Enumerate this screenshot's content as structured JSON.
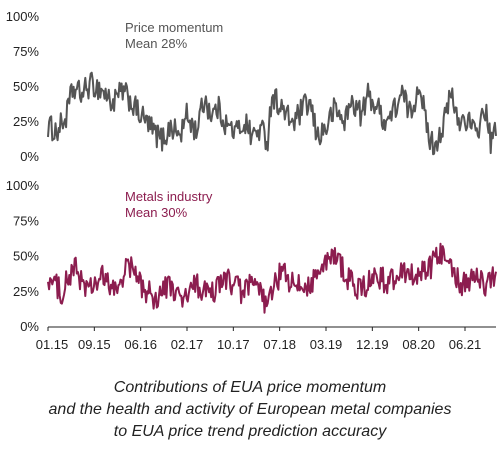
{
  "chart_data": [
    {
      "type": "line",
      "series": [
        {
          "name": "Price momentum",
          "color": "#555555"
        }
      ],
      "annotation": "Mean 28%",
      "mean": 28,
      "ylim": [
        0,
        100
      ],
      "yticks": [
        "0%",
        "25%",
        "50%",
        "75%",
        "100%"
      ],
      "approx_keypoints": [
        [
          0,
          22
        ],
        [
          0.02,
          18
        ],
        [
          0.04,
          28
        ],
        [
          0.055,
          48
        ],
        [
          0.075,
          45
        ],
        [
          0.095,
          52
        ],
        [
          0.12,
          48
        ],
        [
          0.145,
          38
        ],
        [
          0.165,
          47
        ],
        [
          0.18,
          42
        ],
        [
          0.2,
          32
        ],
        [
          0.22,
          25
        ],
        [
          0.235,
          18
        ],
        [
          0.255,
          12
        ],
        [
          0.275,
          22
        ],
        [
          0.295,
          15
        ],
        [
          0.31,
          30
        ],
        [
          0.33,
          18
        ],
        [
          0.35,
          42
        ],
        [
          0.365,
          30
        ],
        [
          0.38,
          35
        ],
        [
          0.4,
          22
        ],
        [
          0.42,
          18
        ],
        [
          0.44,
          25
        ],
        [
          0.455,
          15
        ],
        [
          0.475,
          20
        ],
        [
          0.49,
          12
        ],
        [
          0.5,
          45
        ],
        [
          0.515,
          38
        ],
        [
          0.535,
          28
        ],
        [
          0.55,
          25
        ],
        [
          0.57,
          35
        ],
        [
          0.585,
          38
        ],
        [
          0.6,
          15
        ],
        [
          0.62,
          20
        ],
        [
          0.64,
          35
        ],
        [
          0.66,
          25
        ],
        [
          0.68,
          40
        ],
        [
          0.7,
          30
        ],
        [
          0.715,
          45
        ],
        [
          0.735,
          35
        ],
        [
          0.755,
          25
        ],
        [
          0.775,
          35
        ],
        [
          0.79,
          45
        ],
        [
          0.81,
          30
        ],
        [
          0.83,
          55
        ],
        [
          0.845,
          20
        ],
        [
          0.86,
          8
        ],
        [
          0.88,
          20
        ],
        [
          0.9,
          45
        ],
        [
          0.915,
          25
        ],
        [
          0.935,
          28
        ],
        [
          0.955,
          15
        ],
        [
          0.975,
          35
        ],
        [
          0.99,
          8
        ],
        [
          1,
          22
        ]
      ]
    },
    {
      "type": "line",
      "series": [
        {
          "name": "Metals industry",
          "color": "#8c1d4f"
        }
      ],
      "annotation": "Mean 30%",
      "mean": 30,
      "ylim": [
        0,
        100
      ],
      "yticks": [
        "0%",
        "25%",
        "50%",
        "75%",
        "100%"
      ],
      "x_tick_labels": [
        "01.15",
        "09.15",
        "06.16",
        "02.17",
        "10.17",
        "07.18",
        "03.19",
        "12.19",
        "08.20",
        "06.21"
      ],
      "approx_keypoints": [
        [
          0,
          35
        ],
        [
          0.03,
          25
        ],
        [
          0.06,
          42
        ],
        [
          0.09,
          25
        ],
        [
          0.12,
          35
        ],
        [
          0.15,
          25
        ],
        [
          0.18,
          45
        ],
        [
          0.21,
          28
        ],
        [
          0.24,
          20
        ],
        [
          0.27,
          30
        ],
        [
          0.3,
          18
        ],
        [
          0.33,
          30
        ],
        [
          0.36,
          22
        ],
        [
          0.4,
          35
        ],
        [
          0.43,
          25
        ],
        [
          0.46,
          30
        ],
        [
          0.49,
          15
        ],
        [
          0.52,
          40
        ],
        [
          0.55,
          28
        ],
        [
          0.58,
          30
        ],
        [
          0.61,
          40
        ],
        [
          0.64,
          52
        ],
        [
          0.67,
          35
        ],
        [
          0.7,
          25
        ],
        [
          0.73,
          38
        ],
        [
          0.76,
          30
        ],
        [
          0.79,
          42
        ],
        [
          0.82,
          35
        ],
        [
          0.85,
          40
        ],
        [
          0.87,
          50
        ],
        [
          0.89,
          55
        ],
        [
          0.905,
          40
        ],
        [
          0.92,
          30
        ],
        [
          0.95,
          35
        ],
        [
          0.98,
          30
        ],
        [
          1,
          38
        ]
      ]
    }
  ],
  "caption": {
    "line1": "Contributions of EUA price momentum",
    "line2": "and the health and activity of European metal companies",
    "line3": "to EUA price trend prediction accuracy"
  }
}
